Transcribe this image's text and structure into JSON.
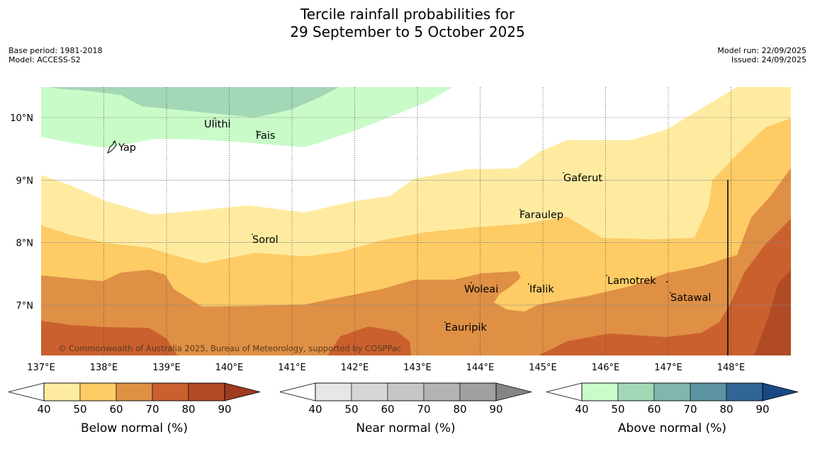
{
  "title": {
    "line1": "Tercile rainfall probabilities for",
    "line2": "29 September to 5 October 2025"
  },
  "meta": {
    "base_period": "Base period: 1981-2018",
    "model": "Model: ACCESS-S2",
    "model_run": "Model run: 22/09/2025",
    "issued": "Issued: 24/09/2025"
  },
  "map": {
    "lon_labels": [
      "137°E",
      "138°E",
      "139°E",
      "140°E",
      "141°E",
      "142°E",
      "143°E",
      "144°E",
      "145°E",
      "146°E",
      "147°E",
      "148°E"
    ],
    "lat_labels": [
      "10°N",
      "9°N",
      "8°N",
      "7°N"
    ],
    "places": [
      {
        "name": "Ulithi"
      },
      {
        "name": "Fais"
      },
      {
        "name": "Yap"
      },
      {
        "name": "Gaferut"
      },
      {
        "name": "Faraulep"
      },
      {
        "name": "Sorol"
      },
      {
        "name": "Lamotrek"
      },
      {
        "name": "Woleai"
      },
      {
        "name": "Ifalik"
      },
      {
        "name": "Satawal"
      },
      {
        "name": "Eauripik"
      }
    ],
    "copyright": "© Commonwealth of Australia 2025, Bureau of Meteorology, supported by COSPPac"
  },
  "colorbars": [
    {
      "label": "Below normal (%)",
      "ticks": [
        "40",
        "50",
        "60",
        "70",
        "80",
        "90"
      ],
      "colors": [
        "#ffeba0",
        "#fecb65",
        "#df9045",
        "#ca602e",
        "#b04b26",
        "#9e3a1e"
      ]
    },
    {
      "label": "Near normal (%)",
      "ticks": [
        "40",
        "50",
        "60",
        "70",
        "80",
        "90"
      ],
      "colors": [
        "#e6e6e6",
        "#d6d6d6",
        "#c6c6c6",
        "#b3b3b3",
        "#a0a0a0",
        "#858585"
      ]
    },
    {
      "label": "Above normal (%)",
      "ticks": [
        "40",
        "50",
        "60",
        "70",
        "80",
        "90"
      ],
      "colors": [
        "#c9fbc9",
        "#a3d7b6",
        "#80b6ad",
        "#5b93a1",
        "#2f6697",
        "#174a85"
      ]
    }
  ]
}
